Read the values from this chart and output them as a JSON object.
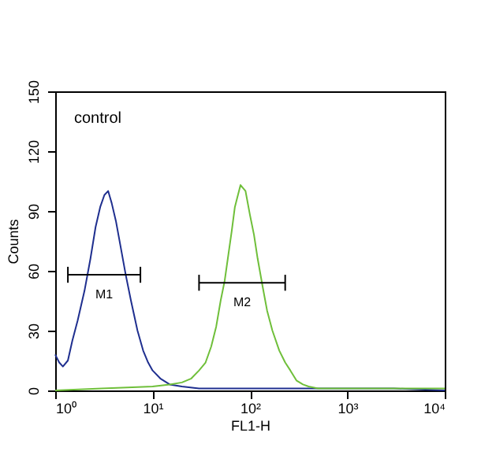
{
  "chart_data": {
    "type": "line",
    "xlabel": "FL1-H",
    "ylabel": "Counts",
    "log": "x",
    "xlim": [
      1,
      10000
    ],
    "ylim": [
      0,
      150
    ],
    "xticks": [
      {
        "value": 1,
        "label": "10⁰"
      },
      {
        "value": 10,
        "label": "10¹"
      },
      {
        "value": 100,
        "label": "10²"
      },
      {
        "value": 1000,
        "label": "10³"
      },
      {
        "value": 10000,
        "label": "10⁴"
      }
    ],
    "yticks": [
      0,
      30,
      60,
      90,
      120,
      150
    ],
    "grid": false,
    "marker": "none",
    "line_style": "solid",
    "annotations": [
      "control"
    ],
    "series": [
      {
        "color": "#1f2f8f",
        "x": [
          1,
          1.1,
          1.2,
          1.35,
          1.5,
          1.7,
          2,
          2.3,
          2.6,
          2.9,
          3.2,
          3.5,
          3.8,
          4.2,
          4.7,
          5.3,
          6,
          7,
          8,
          9,
          10,
          12,
          15,
          20,
          30,
          50,
          100,
          300,
          1000,
          3000,
          10000
        ],
        "values": [
          18,
          14,
          12,
          15,
          25,
          35,
          50,
          66,
          82,
          92,
          98,
          100,
          94,
          85,
          72,
          58,
          45,
          30,
          20,
          14,
          10,
          6,
          3,
          2,
          1,
          1,
          1,
          1,
          1,
          1,
          0
        ]
      },
      {
        "color": "#6fbf3a",
        "x": [
          1,
          3,
          10,
          15,
          20,
          25,
          30,
          35,
          40,
          45,
          50,
          55,
          60,
          65,
          70,
          80,
          90,
          100,
          110,
          120,
          135,
          150,
          170,
          200,
          230,
          260,
          300,
          350,
          400,
          500,
          1000,
          3000,
          10000
        ],
        "values": [
          0,
          1,
          2,
          3,
          4,
          6,
          10,
          14,
          22,
          32,
          45,
          55,
          68,
          80,
          92,
          103,
          100,
          88,
          78,
          66,
          52,
          40,
          30,
          20,
          14,
          10,
          5,
          3,
          2,
          1,
          1,
          1,
          1
        ]
      },
      {
        "name": "M1",
        "color": "#000000",
        "x": [
          1.35,
          7.5
        ],
        "values": [
          58,
          58
        ],
        "errors": [
          4,
          4
        ]
      },
      {
        "name": "M2",
        "color": "#000000",
        "x": [
          30,
          230
        ],
        "values": [
          54,
          54
        ],
        "errors": [
          4,
          4
        ]
      }
    ]
  }
}
